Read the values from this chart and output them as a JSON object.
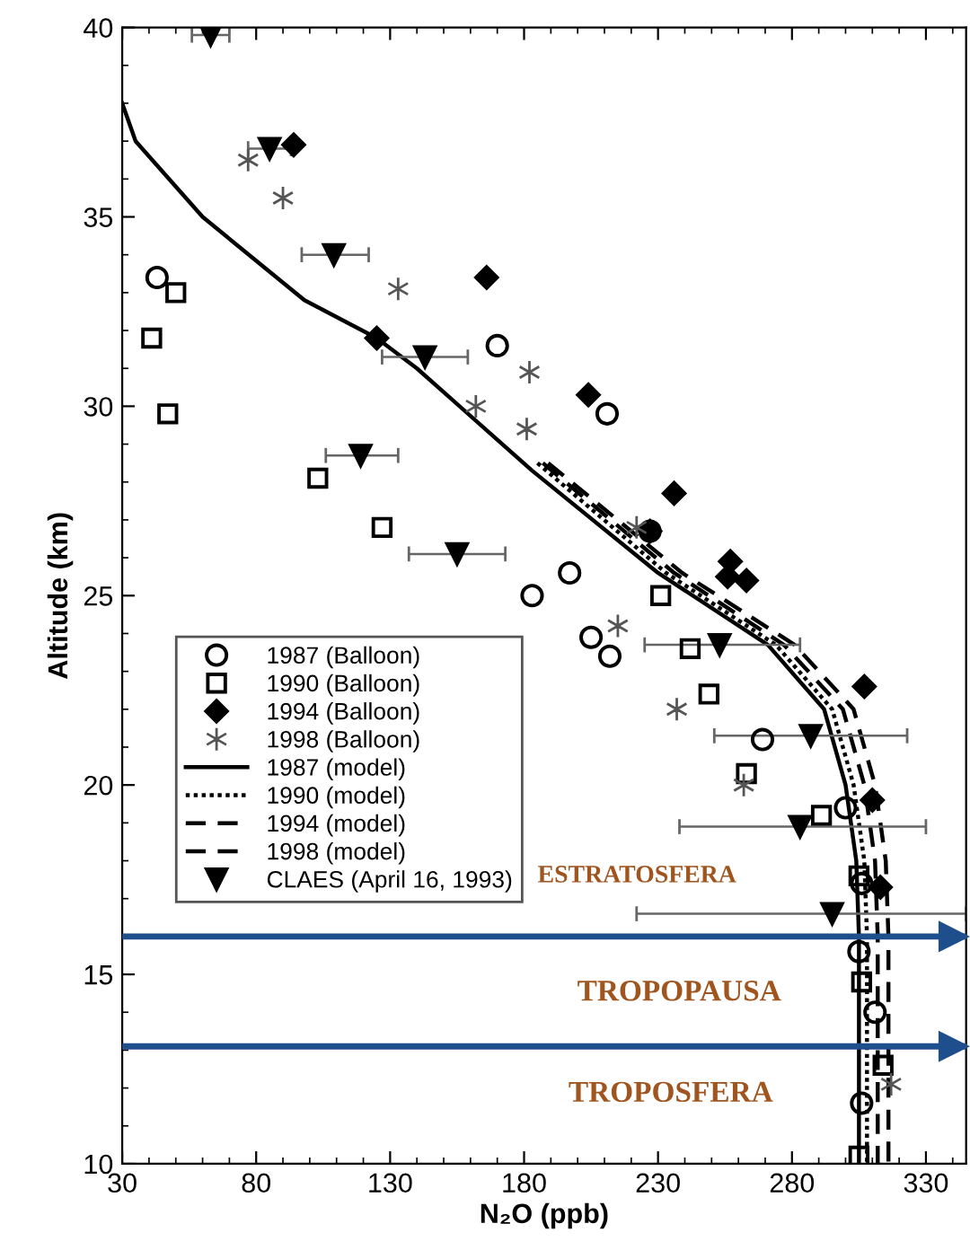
{
  "chart_data": {
    "type": "scatter",
    "xlabel": "N₂O (ppb)",
    "ylabel": "Altitude (km)",
    "xlim": [
      30,
      345
    ],
    "ylim": [
      10,
      40
    ],
    "xticks": [
      30,
      80,
      130,
      180,
      230,
      280,
      330
    ],
    "yticks": [
      10,
      15,
      20,
      25,
      30,
      35,
      40
    ],
    "grid": false,
    "legend": "bottom left",
    "series": [
      {
        "name": "1987 (Balloon)",
        "marker": "circle",
        "color": "#000000",
        "x": [
          43,
          170,
          211,
          227,
          197,
          183,
          205,
          212,
          269,
          300,
          306,
          305,
          311,
          306
        ],
        "values": [
          33.4,
          31.6,
          29.8,
          26.7,
          25.6,
          25.0,
          23.9,
          23.4,
          21.2,
          19.4,
          17.4,
          15.6,
          14.0,
          11.6
        ]
      },
      {
        "name": "1990 (Balloon)",
        "marker": "square",
        "color": "#000000",
        "x": [
          50,
          41,
          47,
          103,
          127,
          231,
          242,
          249,
          263,
          291,
          305,
          306,
          314,
          305
        ],
        "values": [
          33.0,
          31.8,
          29.8,
          28.1,
          26.8,
          25.0,
          23.6,
          22.4,
          20.3,
          19.2,
          17.6,
          14.8,
          12.6,
          10.2
        ]
      },
      {
        "name": "1994 (Balloon)",
        "marker": "diamond",
        "color": "#000000",
        "x": [
          94,
          166,
          125,
          204,
          236,
          227,
          257,
          256,
          263,
          307,
          310,
          313
        ],
        "values": [
          36.9,
          33.4,
          31.8,
          30.3,
          27.7,
          26.7,
          25.9,
          25.5,
          25.4,
          22.6,
          19.6,
          17.3
        ]
      },
      {
        "name": "1998 (Balloon)",
        "marker": "cross",
        "color": "#555555",
        "x": [
          77,
          90,
          133,
          182,
          162,
          181,
          222,
          215,
          237,
          262,
          317
        ],
        "values": [
          36.5,
          35.5,
          33.1,
          30.9,
          30.0,
          29.4,
          26.8,
          24.2,
          22.0,
          20.0,
          12.1
        ]
      },
      {
        "name": "1987 (model)",
        "type": "line",
        "line_style": "solid",
        "color": "#000000",
        "x": [
          30,
          35,
          60,
          98,
          125,
          140,
          183,
          230,
          271,
          292,
          300,
          304,
          305,
          305
        ],
        "values": [
          38.0,
          37.0,
          35.0,
          32.8,
          31.8,
          31.0,
          28.3,
          25.6,
          23.7,
          22.0,
          20.0,
          18.0,
          16.0,
          10.0
        ]
      },
      {
        "name": "1990 (model)",
        "type": "line",
        "line_style": "dotted",
        "color": "#000000",
        "x": [
          185,
          233,
          274,
          295,
          303,
          307,
          308,
          308
        ],
        "values": [
          28.5,
          25.6,
          23.7,
          22.0,
          20.0,
          18.0,
          16.0,
          10.0
        ]
      },
      {
        "name": "1994 (model)",
        "type": "line",
        "line_style": "dashed",
        "color": "#000000",
        "x": [
          187,
          236,
          277,
          299,
          307,
          311,
          312,
          312
        ],
        "values": [
          28.5,
          25.6,
          23.7,
          22.0,
          20.0,
          18.0,
          16.0,
          10.0
        ]
      },
      {
        "name": "1998 (model)",
        "type": "line",
        "line_style": "dashed",
        "color": "#000000",
        "x": [
          189,
          239,
          281,
          303,
          311,
          315,
          316,
          316
        ],
        "values": [
          28.5,
          25.6,
          23.7,
          22.0,
          20.0,
          18.0,
          16.0,
          10.0
        ]
      },
      {
        "name": "CLAES (April 16, 1993)",
        "marker": "triangle",
        "color": "#000000",
        "x": [
          63,
          85,
          109,
          143,
          119,
          155,
          253,
          287,
          283,
          295
        ],
        "values": [
          39.8,
          36.8,
          34.0,
          31.3,
          28.7,
          26.1,
          23.7,
          21.3,
          18.9,
          16.6
        ],
        "xerrors": [
          [
            56,
            70
          ],
          [
            77,
            93
          ],
          [
            97,
            122
          ],
          [
            127,
            159
          ],
          [
            106,
            133
          ],
          [
            137,
            173
          ],
          [
            225,
            283
          ],
          [
            251,
            323
          ],
          [
            238,
            330
          ],
          [
            222,
            345
          ]
        ]
      }
    ],
    "ref_lines": [
      {
        "axis": "y",
        "value": 16,
        "color": "#1f4e8c"
      },
      {
        "axis": "y",
        "value": 13.1,
        "color": "#1f4e8c"
      }
    ],
    "annotations": [
      "ESTRATOSFERA",
      "TROPOPAUSA",
      "TROPOSFERA"
    ]
  }
}
